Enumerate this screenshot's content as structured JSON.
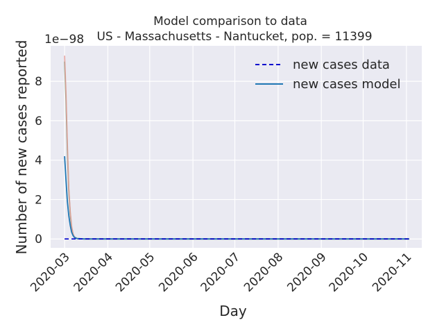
{
  "chart_data": {
    "type": "line",
    "title": "Model comparison to data",
    "subtitle": "US - Massachusetts - Nantucket, pop. = 11399",
    "xlabel": "Day",
    "ylabel": "Number of new cases reported",
    "y_offset_label": "1e−98",
    "x_tick_labels": [
      "2020-03",
      "2020-04",
      "2020-05",
      "2020-06",
      "2020-07",
      "2020-08",
      "2020-09",
      "2020-10",
      "2020-11"
    ],
    "x_tick_dates": [
      "2020-03-01",
      "2020-04-01",
      "2020-05-01",
      "2020-06-01",
      "2020-07-01",
      "2020-08-01",
      "2020-09-01",
      "2020-10-01",
      "2020-11-01"
    ],
    "y_ticks": [
      0,
      2,
      4,
      6,
      8
    ],
    "y_tick_labels": [
      "0",
      "2",
      "4",
      "6",
      "8"
    ],
    "xlim": [
      "2020-02-20",
      "2020-11-12"
    ],
    "ylim": [
      -0.45,
      9.8
    ],
    "grid": true,
    "legend_position": "top-right",
    "legend": [
      {
        "label": "new cases data",
        "style": "dashed",
        "color": "#0000cd"
      },
      {
        "label": "new cases model",
        "style": "solid",
        "color": "#1f77b4"
      }
    ],
    "series": [
      {
        "name": "new cases data",
        "style": "dashed",
        "color": "#0000cd",
        "x": [
          "2020-03-01",
          "2020-11-03"
        ],
        "values": [
          0,
          0
        ]
      },
      {
        "name": "new cases model",
        "style": "solid",
        "color": "#1f77b4",
        "x": [
          "2020-03-01",
          "2020-03-02",
          "2020-03-03",
          "2020-03-04",
          "2020-03-05",
          "2020-03-06",
          "2020-03-07",
          "2020-03-08",
          "2020-03-10",
          "2020-03-15",
          "2020-04-01",
          "2020-11-03"
        ],
        "values": [
          4.2,
          3.0,
          1.9,
          1.2,
          0.7,
          0.35,
          0.18,
          0.08,
          0.02,
          0.0,
          0.0,
          0.0
        ]
      },
      {
        "style": "solid",
        "color": "#4c9a6a",
        "x": [
          "2020-03-01",
          "2020-03-02",
          "2020-03-03",
          "2020-03-04",
          "2020-03-05",
          "2020-03-06",
          "2020-03-07",
          "2020-03-08",
          "2020-03-10",
          "2020-03-15",
          "2020-04-01",
          "2020-11-03"
        ],
        "values": [
          9.0,
          7.1,
          4.5,
          2.5,
          1.3,
          0.6,
          0.25,
          0.1,
          0.02,
          0.0,
          0.0,
          0.0
        ]
      },
      {
        "style": "solid",
        "color": "#e8a09a",
        "x": [
          "2020-03-01",
          "2020-03-02",
          "2020-03-03",
          "2020-03-04",
          "2020-03-05",
          "2020-03-06",
          "2020-03-07",
          "2020-03-08",
          "2020-03-10",
          "2020-03-15",
          "2020-04-01",
          "2020-11-03"
        ],
        "values": [
          9.3,
          7.4,
          4.8,
          2.6,
          1.4,
          0.65,
          0.28,
          0.1,
          0.02,
          0.0,
          0.0,
          0.0
        ]
      }
    ]
  }
}
